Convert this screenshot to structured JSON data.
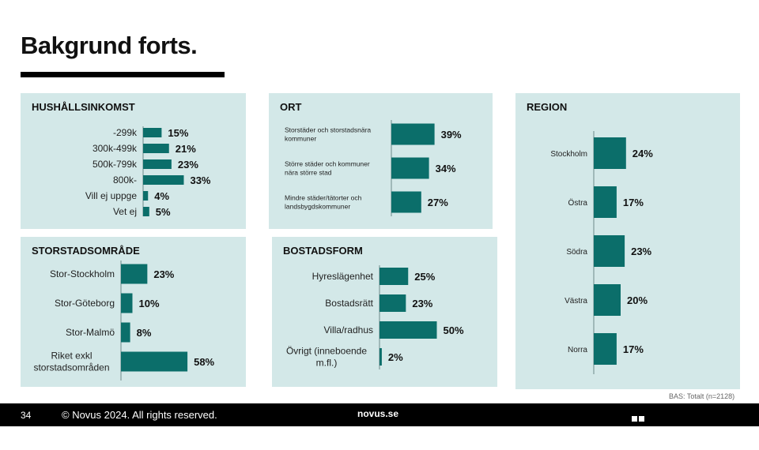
{
  "page": {
    "title": "Bakgrund forts.",
    "footer": {
      "page_number": "34",
      "copyright": "© Novus 2024. All rights reserved.",
      "website": "novus.se",
      "logo": "NOVUS"
    },
    "base_note": "BAS: Totalt (n=2128)",
    "colors": {
      "bar": "#0b6e6a",
      "panel": "#d3e8e8"
    }
  },
  "chart_data": [
    {
      "id": "hushallsinkomst",
      "type": "bar",
      "orientation": "horizontal",
      "title": "HUSHÅLLSINKOMST",
      "categories": [
        "-299k",
        "300k-499k",
        "500k-799k",
        "800k-",
        "Vill ej uppge",
        "Vet ej"
      ],
      "values": [
        15,
        21,
        23,
        33,
        4,
        5
      ],
      "value_labels": [
        "15%",
        "21%",
        "23%",
        "33%",
        "4%",
        "5%"
      ],
      "unit": "%"
    },
    {
      "id": "ort",
      "type": "bar",
      "orientation": "horizontal",
      "title": "ORT",
      "categories": [
        [
          "Storstäder och storstadsnära",
          "kommuner"
        ],
        [
          "Större städer och kommuner",
          "nära större stad"
        ],
        [
          "Mindre städer/tätorter och",
          "landsbygdskommuner"
        ]
      ],
      "values": [
        39,
        34,
        27
      ],
      "value_labels": [
        "39%",
        "34%",
        "27%"
      ],
      "unit": "%"
    },
    {
      "id": "region",
      "type": "bar",
      "orientation": "horizontal",
      "title": "REGION",
      "categories": [
        "Stockholm",
        "Östra",
        "Södra",
        "Västra",
        "Norra"
      ],
      "values": [
        24,
        17,
        23,
        20,
        17
      ],
      "value_labels": [
        "24%",
        "17%",
        "23%",
        "20%",
        "17%"
      ],
      "unit": "%"
    },
    {
      "id": "storstadsomrade",
      "type": "bar",
      "orientation": "horizontal",
      "title": "STORSTADSOMRÅDE",
      "categories": [
        "Stor-Stockholm",
        "Stor-Göteborg",
        "Stor-Malmö",
        [
          "Riket exkl",
          "storstadsområden"
        ]
      ],
      "values": [
        23,
        10,
        8,
        58
      ],
      "value_labels": [
        "23%",
        "10%",
        "8%",
        "58%"
      ],
      "unit": "%"
    },
    {
      "id": "bostadsform",
      "type": "bar",
      "orientation": "horizontal",
      "title": "BOSTADSFORM",
      "categories": [
        "Hyreslägenhet",
        "Bostadsrätt",
        "Villa/radhus",
        [
          "Övrigt (inneboende",
          "m.fl.)"
        ]
      ],
      "values": [
        25,
        23,
        50,
        2
      ],
      "value_labels": [
        "25%",
        "23%",
        "50%",
        "2%"
      ],
      "unit": "%"
    }
  ]
}
